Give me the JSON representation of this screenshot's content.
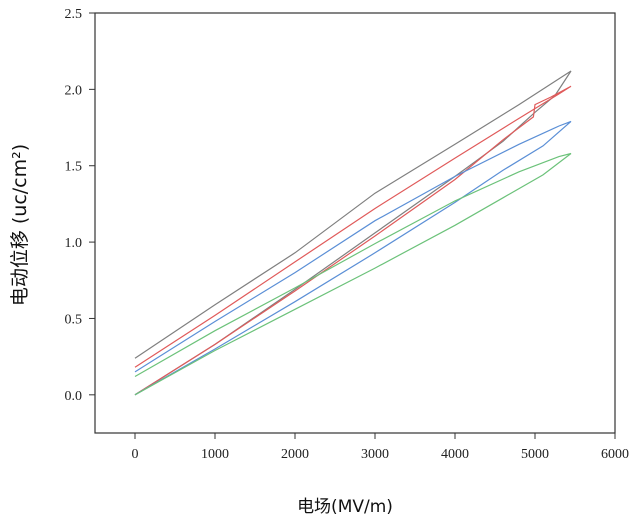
{
  "chart_data": {
    "type": "line",
    "xlabel": "电场(MV/m)",
    "ylabel": "电动位移 (uc/cm²)",
    "xlim": [
      -500,
      6000
    ],
    "ylim": [
      -0.25,
      2.5
    ],
    "xticks": [
      0,
      1000,
      2000,
      3000,
      4000,
      5000,
      6000
    ],
    "yticks": [
      0.0,
      0.5,
      1.0,
      1.5,
      2.0,
      2.5
    ],
    "ytick_labels": [
      "0.0",
      "0.5",
      "1.0",
      "1.5",
      "2.0",
      "2.5"
    ],
    "grid": false,
    "legend": "none",
    "series": [
      {
        "color": "#7f7f7f",
        "x": [
          0,
          1000,
          2000,
          3000,
          4000,
          4600,
          5000,
          5250,
          5450,
          5300,
          4800,
          4000,
          3000,
          2000,
          1000,
          0
        ],
        "y": [
          0.0,
          0.33,
          0.69,
          1.06,
          1.43,
          1.66,
          1.85,
          1.96,
          2.12,
          2.07,
          1.9,
          1.64,
          1.32,
          0.93,
          0.59,
          0.24
        ]
      },
      {
        "color": "#e05a5a",
        "x": [
          0,
          1000,
          2000,
          3000,
          4000,
          4600,
          4980,
          5000,
          5200,
          5450,
          5300,
          4800,
          4000,
          3000,
          2000,
          1000,
          0
        ],
        "y": [
          0.0,
          0.33,
          0.68,
          1.04,
          1.41,
          1.67,
          1.82,
          1.9,
          1.95,
          2.02,
          1.97,
          1.81,
          1.55,
          1.22,
          0.87,
          0.52,
          0.18
        ]
      },
      {
        "color": "#5b8fd6",
        "x": [
          0,
          1000,
          2000,
          3000,
          4000,
          4600,
          5100,
          5450,
          5300,
          4800,
          4000,
          3000,
          2000,
          1000,
          0
        ],
        "y": [
          0.0,
          0.3,
          0.61,
          0.93,
          1.26,
          1.47,
          1.63,
          1.79,
          1.76,
          1.64,
          1.43,
          1.14,
          0.8,
          0.48,
          0.15
        ]
      },
      {
        "color": "#6cc27a",
        "x": [
          0,
          1000,
          2000,
          3000,
          4000,
          4600,
          5100,
          5450,
          5300,
          4800,
          4000,
          3000,
          2000,
          1000,
          0
        ],
        "y": [
          0.0,
          0.29,
          0.56,
          0.83,
          1.11,
          1.29,
          1.44,
          1.58,
          1.56,
          1.46,
          1.27,
          0.99,
          0.7,
          0.42,
          0.12
        ]
      }
    ]
  }
}
